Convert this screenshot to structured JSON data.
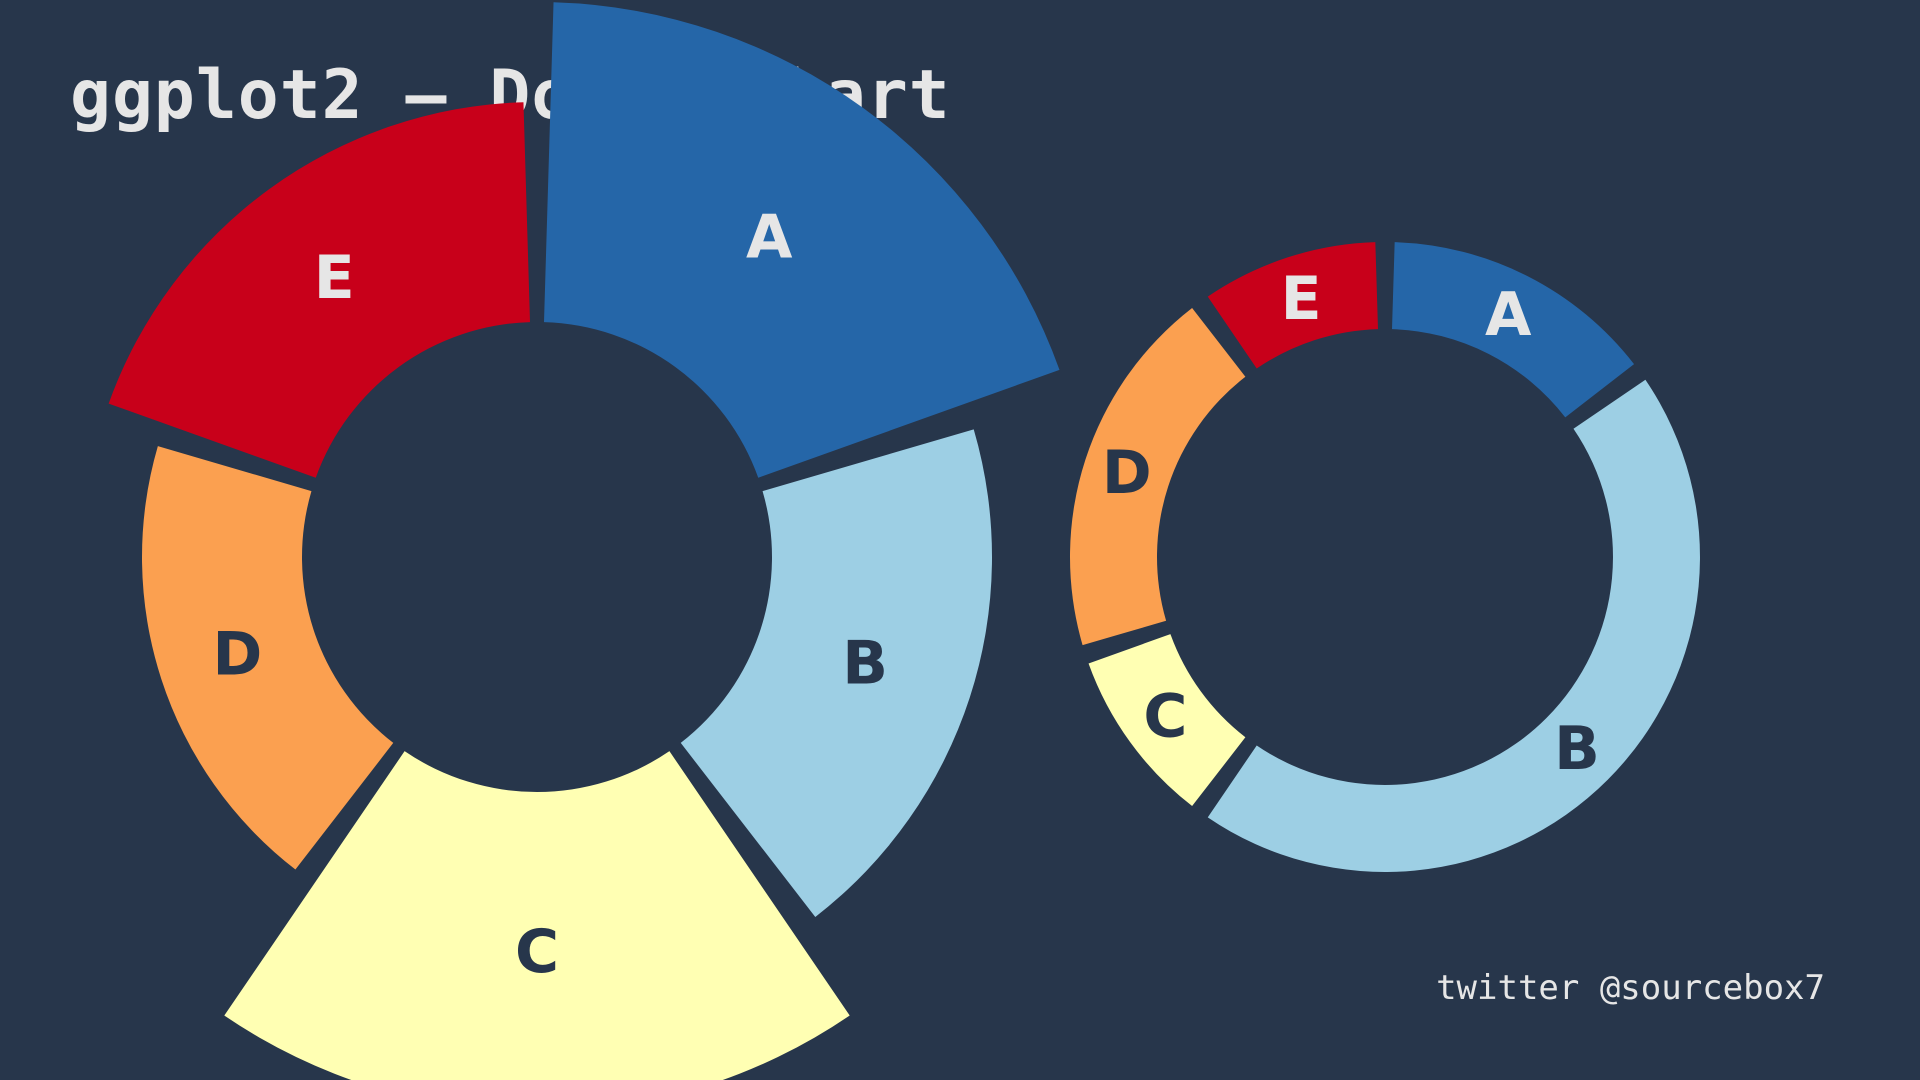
{
  "title": "ggplot2 – Donut Chart",
  "credit": "twitter @sourcebox7",
  "colors": {
    "background": "#27364b",
    "text_light": "#e6e6e6",
    "text_dark": "#27364b"
  },
  "chart_data": [
    {
      "type": "donut",
      "variant": "radial-extent",
      "categories": [
        "A",
        "B",
        "C",
        "D",
        "E"
      ],
      "values": [
        20,
        20,
        20,
        20,
        20
      ],
      "extent": [
        1.6,
        1.1,
        1.6,
        0.8,
        1.1
      ],
      "colors": [
        "#2566a8",
        "#9dcfe4",
        "#ffffb3",
        "#fba050",
        "#c8001a"
      ],
      "label_colors": [
        "#e6e6e6",
        "#27364b",
        "#27364b",
        "#27364b",
        "#e6e6e6"
      ],
      "legend": "none"
    },
    {
      "type": "donut",
      "variant": "proportional",
      "categories": [
        "A",
        "B",
        "C",
        "D",
        "E"
      ],
      "values": [
        15,
        45,
        10,
        20,
        10
      ],
      "colors": [
        "#2566a8",
        "#9dcfe4",
        "#ffffb3",
        "#fba050",
        "#c8001a"
      ],
      "label_colors": [
        "#e6e6e6",
        "#27364b",
        "#27364b",
        "#27364b",
        "#e6e6e6"
      ],
      "legend": "none"
    }
  ]
}
